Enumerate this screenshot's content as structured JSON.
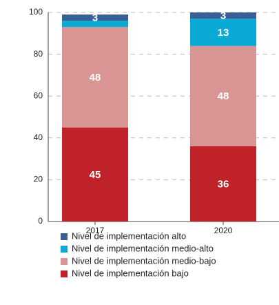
{
  "chart_data": {
    "type": "stacked_bar",
    "categories": [
      "2017",
      "2020"
    ],
    "series": [
      {
        "name": "Nivel de implementación bajo",
        "color": "#c0222a",
        "values": [
          45,
          36
        ]
      },
      {
        "name": "Nivel de implementación medio-bajo",
        "color": "#d99593",
        "values": [
          48,
          48
        ]
      },
      {
        "name": "Nivel de implementación medio-alto",
        "color": "#0aa9d6",
        "values": [
          3,
          13
        ],
        "value_labels": [
          null,
          "13"
        ]
      },
      {
        "name": "Nivel de implementación alto",
        "color": "#3a5f94",
        "values": [
          3,
          3
        ]
      }
    ],
    "ylim": [
      0,
      100
    ],
    "yticks": [
      0,
      20,
      40,
      60,
      80,
      100
    ],
    "grid": true
  }
}
